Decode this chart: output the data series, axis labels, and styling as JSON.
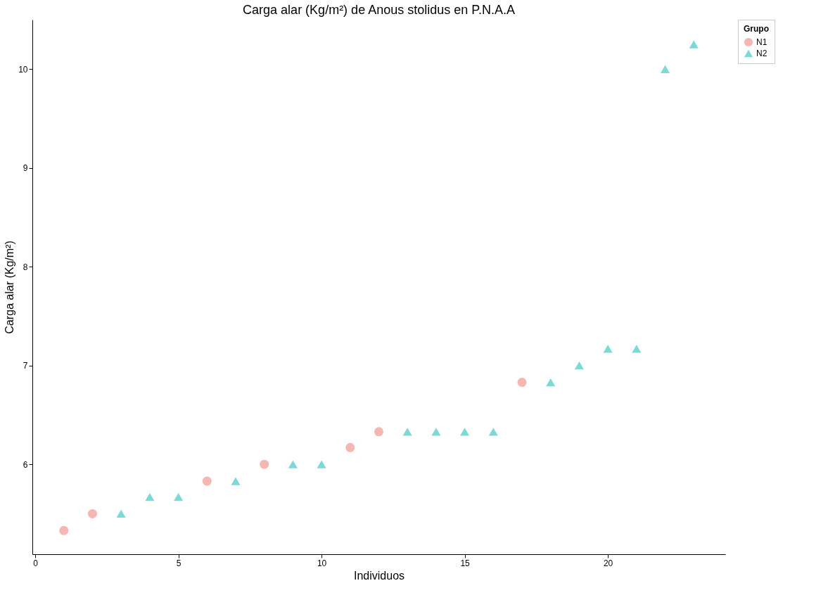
{
  "chart_data": {
    "type": "scatter",
    "title": "Carga alar (Kg/m²) de Anous stolidus en P.N.A.A",
    "xlabel": "Individuos",
    "ylabel": "Carga alar (Kg/m²)",
    "legend_title": "Grupo",
    "series": [
      {
        "name": "N1",
        "color": "#f5b7b1",
        "marker": "circle",
        "x": [
          1,
          2,
          6,
          8,
          11,
          12,
          17
        ],
        "values": [
          5.33,
          5.5,
          5.83,
          6.0,
          6.17,
          6.33,
          6.83
        ]
      },
      {
        "name": "N2",
        "color": "#7dd8d8",
        "marker": "triangle",
        "x": [
          3,
          4,
          5,
          7,
          9,
          10,
          13,
          14,
          15,
          16,
          18,
          19,
          20,
          21,
          22,
          23
        ],
        "values": [
          5.5,
          5.67,
          5.67,
          5.83,
          6.0,
          6.0,
          6.33,
          6.33,
          6.33,
          6.33,
          6.83,
          7.0,
          7.17,
          7.17,
          10.0,
          10.25
        ]
      }
    ],
    "xlim": [
      -0.1,
      24.1
    ],
    "xticks": [
      0,
      5,
      10,
      15,
      20
    ],
    "ylim": [
      5.09,
      10.5
    ],
    "yticks": [
      6,
      7,
      8,
      9,
      10
    ],
    "grid": false,
    "legend": "right"
  }
}
